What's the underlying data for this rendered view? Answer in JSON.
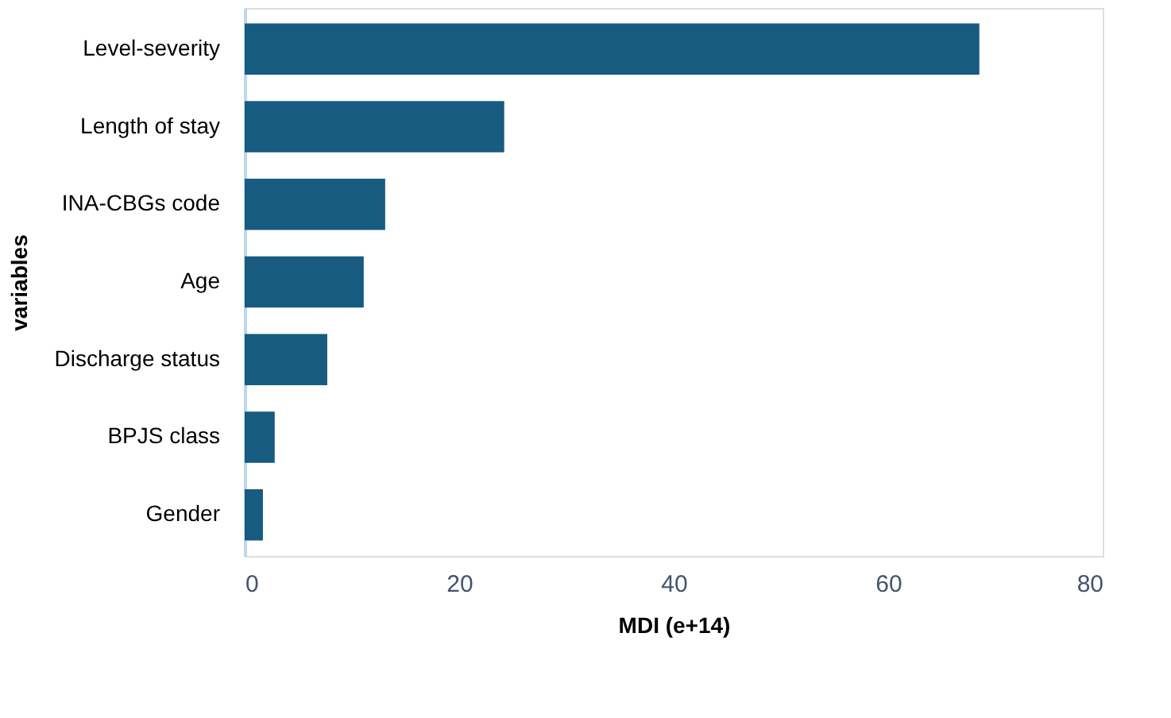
{
  "chart_data": {
    "type": "bar",
    "orientation": "horizontal",
    "xlabel": "MDI (e+14)",
    "ylabel": "variables",
    "categories": [
      "Level-severity",
      "Length of stay",
      "INA-CBGs code",
      "Age",
      "Discharge status",
      "BPJS class",
      "Gender"
    ],
    "values": [
      68.5,
      24.2,
      13.1,
      11.1,
      7.7,
      2.8,
      1.7
    ],
    "color": "#175b80",
    "xlim": [
      0,
      80
    ],
    "xticks": [
      0,
      20,
      40,
      60,
      80
    ],
    "grid": false
  }
}
